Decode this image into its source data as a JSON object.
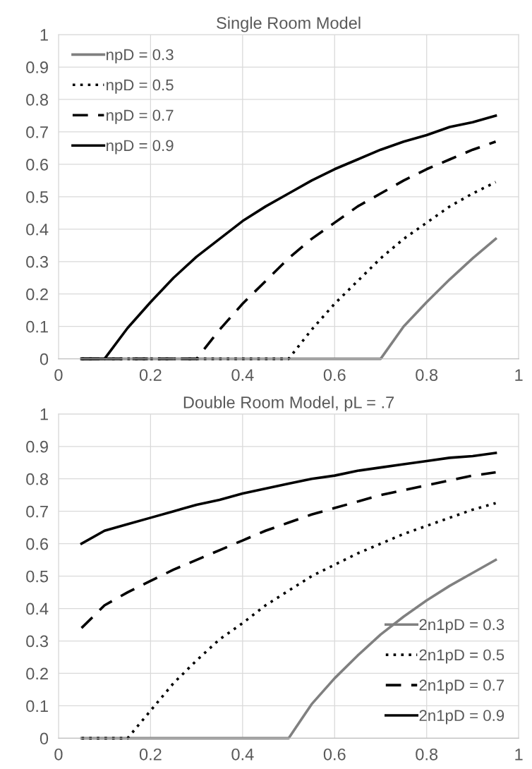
{
  "chart_data": [
    {
      "type": "line",
      "title": "Single Room Model",
      "x": [
        0.05,
        0.1,
        0.15,
        0.2,
        0.25,
        0.3,
        0.35,
        0.4,
        0.45,
        0.5,
        0.55,
        0.6,
        0.65,
        0.7,
        0.75,
        0.8,
        0.85,
        0.9,
        0.95
      ],
      "xlim": [
        0,
        1
      ],
      "xticks": [
        0,
        0.2,
        0.4,
        0.6,
        0.8,
        1
      ],
      "ylim": [
        0,
        1
      ],
      "yticks": [
        0,
        0.1,
        0.2,
        0.3,
        0.4,
        0.5,
        0.6,
        0.7,
        0.8,
        0.9,
        1
      ],
      "grid": true,
      "legend": "top left",
      "marker": "none",
      "series": [
        {
          "name": "npD = 0.3",
          "color": "#808080",
          "line_style": "solid",
          "values": [
            0,
            0,
            0,
            0,
            0,
            0,
            0,
            0,
            0,
            0,
            0,
            0,
            0,
            0,
            0.1,
            0.175,
            0.245,
            0.31,
            0.37
          ]
        },
        {
          "name": "npD = 0.5",
          "color": "#000000",
          "line_style": "dotted",
          "values": [
            0,
            0,
            0,
            0,
            0,
            0,
            0,
            0,
            0,
            0,
            0.09,
            0.17,
            0.24,
            0.31,
            0.37,
            0.42,
            0.47,
            0.51,
            0.545
          ]
        },
        {
          "name": "npD = 0.7",
          "color": "#000000",
          "line_style": "dashed",
          "values": [
            0,
            0,
            0,
            0,
            0,
            0,
            0.09,
            0.17,
            0.24,
            0.31,
            0.37,
            0.42,
            0.47,
            0.51,
            0.55,
            0.585,
            0.615,
            0.645,
            0.67
          ]
        },
        {
          "name": "npD = 0.9",
          "color": "#000000",
          "line_style": "solid",
          "values": [
            0,
            0,
            0.095,
            0.175,
            0.25,
            0.315,
            0.37,
            0.425,
            0.47,
            0.51,
            0.55,
            0.585,
            0.615,
            0.645,
            0.67,
            0.69,
            0.715,
            0.73,
            0.75
          ]
        }
      ]
    },
    {
      "type": "line",
      "title": "Double Room Model, pL = .7",
      "x": [
        0.05,
        0.1,
        0.15,
        0.2,
        0.25,
        0.3,
        0.35,
        0.4,
        0.45,
        0.5,
        0.55,
        0.6,
        0.65,
        0.7,
        0.75,
        0.8,
        0.85,
        0.9,
        0.95
      ],
      "xlim": [
        0,
        1
      ],
      "xticks": [
        0,
        0.2,
        0.4,
        0.6,
        0.8,
        1
      ],
      "ylim": [
        0,
        1
      ],
      "yticks": [
        0,
        0.1,
        0.2,
        0.3,
        0.4,
        0.5,
        0.6,
        0.7,
        0.8,
        0.9,
        1
      ],
      "grid": true,
      "legend": "bottom right",
      "marker": "none",
      "series": [
        {
          "name": "2n1pD = 0.3",
          "color": "#808080",
          "line_style": "solid",
          "values": [
            0,
            0,
            0,
            0,
            0,
            0,
            0,
            0,
            0,
            0,
            0.105,
            0.185,
            0.255,
            0.32,
            0.375,
            0.425,
            0.47,
            0.51,
            0.55
          ]
        },
        {
          "name": "2n1pD = 0.5",
          "color": "#000000",
          "line_style": "dotted",
          "values": [
            0,
            0,
            0,
            0.085,
            0.17,
            0.24,
            0.305,
            0.355,
            0.41,
            0.455,
            0.5,
            0.535,
            0.57,
            0.6,
            0.63,
            0.655,
            0.68,
            0.705,
            0.725
          ]
        },
        {
          "name": "2n1pD = 0.7",
          "color": "#000000",
          "line_style": "dashed",
          "values": [
            0.34,
            0.41,
            0.45,
            0.485,
            0.52,
            0.55,
            0.58,
            0.61,
            0.64,
            0.665,
            0.69,
            0.71,
            0.73,
            0.75,
            0.765,
            0.78,
            0.795,
            0.81,
            0.82
          ]
        },
        {
          "name": "2n1pD = 0.9",
          "color": "#000000",
          "line_style": "solid",
          "values": [
            0.6,
            0.64,
            0.66,
            0.68,
            0.7,
            0.72,
            0.735,
            0.755,
            0.77,
            0.785,
            0.8,
            0.81,
            0.825,
            0.835,
            0.845,
            0.855,
            0.865,
            0.87,
            0.88
          ]
        }
      ]
    }
  ]
}
